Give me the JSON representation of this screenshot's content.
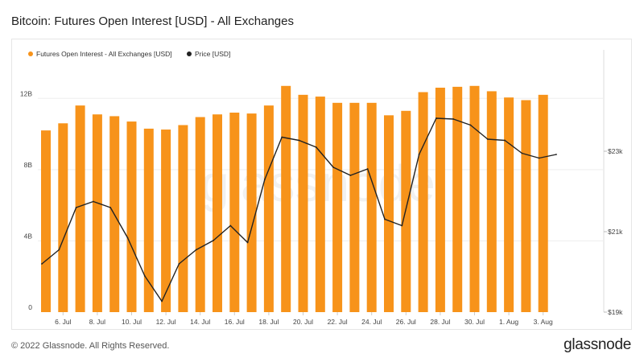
{
  "title": "Bitcoin: Futures Open Interest [USD] - All Exchanges",
  "footer": "© 2022 Glassnode. All Rights Reserved.",
  "brand": "glassnode",
  "watermark": "glassnode",
  "chart_data": {
    "type": "bar+line",
    "title": "Bitcoin: Futures Open Interest [USD] - All Exchanges",
    "legend_position": "top-left",
    "x_tick_labels": [
      "6. Jul",
      "8. Jul",
      "10. Jul",
      "12. Jul",
      "14. Jul",
      "16. Jul",
      "18. Jul",
      "20. Jul",
      "22. Jul",
      "24. Jul",
      "26. Jul",
      "28. Jul",
      "30. Jul",
      "1. Aug",
      "3. Aug"
    ],
    "categories": [
      "5 Jul",
      "6 Jul",
      "7 Jul",
      "8 Jul",
      "9 Jul",
      "10 Jul",
      "11 Jul",
      "12 Jul",
      "13 Jul",
      "14 Jul",
      "15 Jul",
      "16 Jul",
      "17 Jul",
      "18 Jul",
      "19 Jul",
      "20 Jul",
      "21 Jul",
      "22 Jul",
      "23 Jul",
      "24 Jul",
      "25 Jul",
      "26 Jul",
      "27 Jul",
      "28 Jul",
      "29 Jul",
      "30 Jul",
      "31 Jul",
      "1 Aug",
      "2 Aug",
      "3 Aug",
      "4 Aug"
    ],
    "left_axis": {
      "ticks": [
        0,
        4,
        8,
        12
      ],
      "tick_labels": [
        "0",
        "4B",
        "8B",
        "12B"
      ],
      "ylim": [
        0,
        14
      ],
      "unit": "B"
    },
    "right_axis": {
      "ticks": [
        19000,
        21000,
        23000
      ],
      "tick_labels": [
        "$19k",
        "$21k",
        "$23k"
      ],
      "ylim": [
        19000,
        25200
      ]
    },
    "grid": true,
    "series": [
      {
        "name": "Futures Open Interest - All Exchanges [USD]",
        "type": "bar",
        "axis": "left",
        "color": "#f7931a",
        "values": [
          10.2,
          10.6,
          11.6,
          11.1,
          11.0,
          10.7,
          10.3,
          10.25,
          10.5,
          10.95,
          11.1,
          11.2,
          11.15,
          11.6,
          12.7,
          12.2,
          12.1,
          11.75,
          11.75,
          11.75,
          11.05,
          11.3,
          12.35,
          12.6,
          12.65,
          12.7,
          12.4,
          12.05,
          11.9,
          12.2,
          null
        ]
      },
      {
        "name": "Price [USD]",
        "type": "line",
        "axis": "right",
        "color": "#222222",
        "values": [
          20200,
          20550,
          21600,
          21750,
          21600,
          20850,
          19900,
          19270,
          20200,
          20550,
          20780,
          21150,
          20730,
          22300,
          23350,
          23270,
          23100,
          22600,
          22400,
          22560,
          21310,
          21150,
          22920,
          23820,
          23800,
          23650,
          23300,
          23270,
          22950,
          22830,
          22920
        ]
      }
    ]
  }
}
